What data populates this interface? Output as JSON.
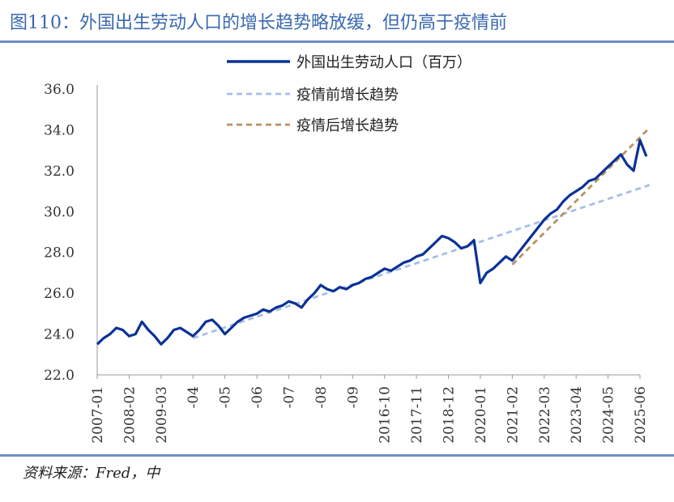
{
  "figure": {
    "title": "图110：外国出生劳动人口的增长趋势略放缓，但仍高于疫情前",
    "source": "资料来源：Fred，中"
  },
  "colors": {
    "series": "#0a3296",
    "pre_trend": "#a6bfe6",
    "post_trend": "#b89264",
    "axis": "#9a9a9a",
    "title": "#3a68b0",
    "rule": "#6d8fc4"
  },
  "chart_data": {
    "type": "line",
    "ylim": [
      22.0,
      36.0
    ],
    "y_ticks": [
      "22.0",
      "24.0",
      "26.0",
      "28.0",
      "30.0",
      "32.0",
      "34.0",
      "36.0"
    ],
    "x_ticks": [
      "2007-01",
      "2008-02",
      "2009-03",
      "-04",
      "-05",
      "-06",
      "-07",
      "-08",
      "-09",
      "2016-10",
      "2017-11",
      "2018-12",
      "2020-01",
      "2021-02",
      "2022-03",
      "2023-04",
      "2024-05",
      "2025-06"
    ],
    "legend": [
      {
        "label": "外国出生劳动人口（百万）",
        "style": "solid",
        "color": "#0a3296"
      },
      {
        "label": "疫情前增长趋势",
        "style": "dashed",
        "color": "#a6bfe6"
      },
      {
        "label": "疫情后增长趋势",
        "style": "dashed",
        "color": "#b89264"
      }
    ],
    "series": [
      {
        "name": "外国出生劳动人口（百万）",
        "x": [
          0.0,
          0.2,
          0.4,
          0.6,
          0.8,
          1.0,
          1.2,
          1.4,
          1.6,
          1.8,
          2.0,
          2.2,
          2.4,
          2.6,
          2.8,
          3.0,
          3.2,
          3.4,
          3.6,
          3.8,
          4.0,
          4.2,
          4.4,
          4.6,
          4.8,
          5.0,
          5.2,
          5.4,
          5.6,
          5.8,
          6.0,
          6.2,
          6.4,
          6.6,
          6.8,
          7.0,
          7.2,
          7.4,
          7.6,
          7.8,
          8.0,
          8.2,
          8.4,
          8.6,
          8.8,
          9.0,
          9.2,
          9.4,
          9.6,
          9.8,
          10.0,
          10.2,
          10.4,
          10.6,
          10.8,
          11.0,
          11.2,
          11.4,
          11.6,
          11.8,
          12.0,
          12.2,
          12.4,
          12.6,
          12.8,
          13.0,
          13.2,
          13.4,
          13.6,
          13.8,
          14.0,
          14.2,
          14.4,
          14.6,
          14.8,
          15.0,
          15.2,
          15.4,
          15.6,
          15.8,
          16.0,
          16.2,
          16.4,
          16.6,
          16.8,
          17.0,
          17.2
        ],
        "y": [
          23.5,
          23.8,
          24.0,
          24.3,
          24.2,
          23.9,
          24.0,
          24.6,
          24.2,
          23.9,
          23.5,
          23.8,
          24.2,
          24.3,
          24.1,
          23.9,
          24.2,
          24.6,
          24.7,
          24.4,
          24.0,
          24.3,
          24.6,
          24.8,
          24.9,
          25.0,
          25.2,
          25.1,
          25.3,
          25.4,
          25.6,
          25.5,
          25.3,
          25.7,
          26.0,
          26.4,
          26.2,
          26.1,
          26.3,
          26.2,
          26.4,
          26.5,
          26.7,
          26.8,
          27.0,
          27.2,
          27.1,
          27.3,
          27.5,
          27.6,
          27.8,
          27.9,
          28.2,
          28.5,
          28.8,
          28.7,
          28.5,
          28.2,
          28.3,
          28.6,
          26.5,
          27.0,
          27.2,
          27.5,
          27.8,
          27.6,
          28.0,
          28.4,
          28.8,
          29.2,
          29.6,
          29.9,
          30.1,
          30.5,
          30.8,
          31.0,
          31.2,
          31.5,
          31.6,
          31.9,
          32.2,
          32.5,
          32.8,
          32.3,
          32.0,
          33.5,
          32.7
        ]
      },
      {
        "name": "疫情前增长趋势",
        "x": [
          3.0,
          17.3
        ],
        "y": [
          23.8,
          31.3
        ]
      },
      {
        "name": "疫情后增长趋势",
        "x": [
          13.0,
          17.3
        ],
        "y": [
          27.4,
          34.1
        ]
      }
    ]
  }
}
